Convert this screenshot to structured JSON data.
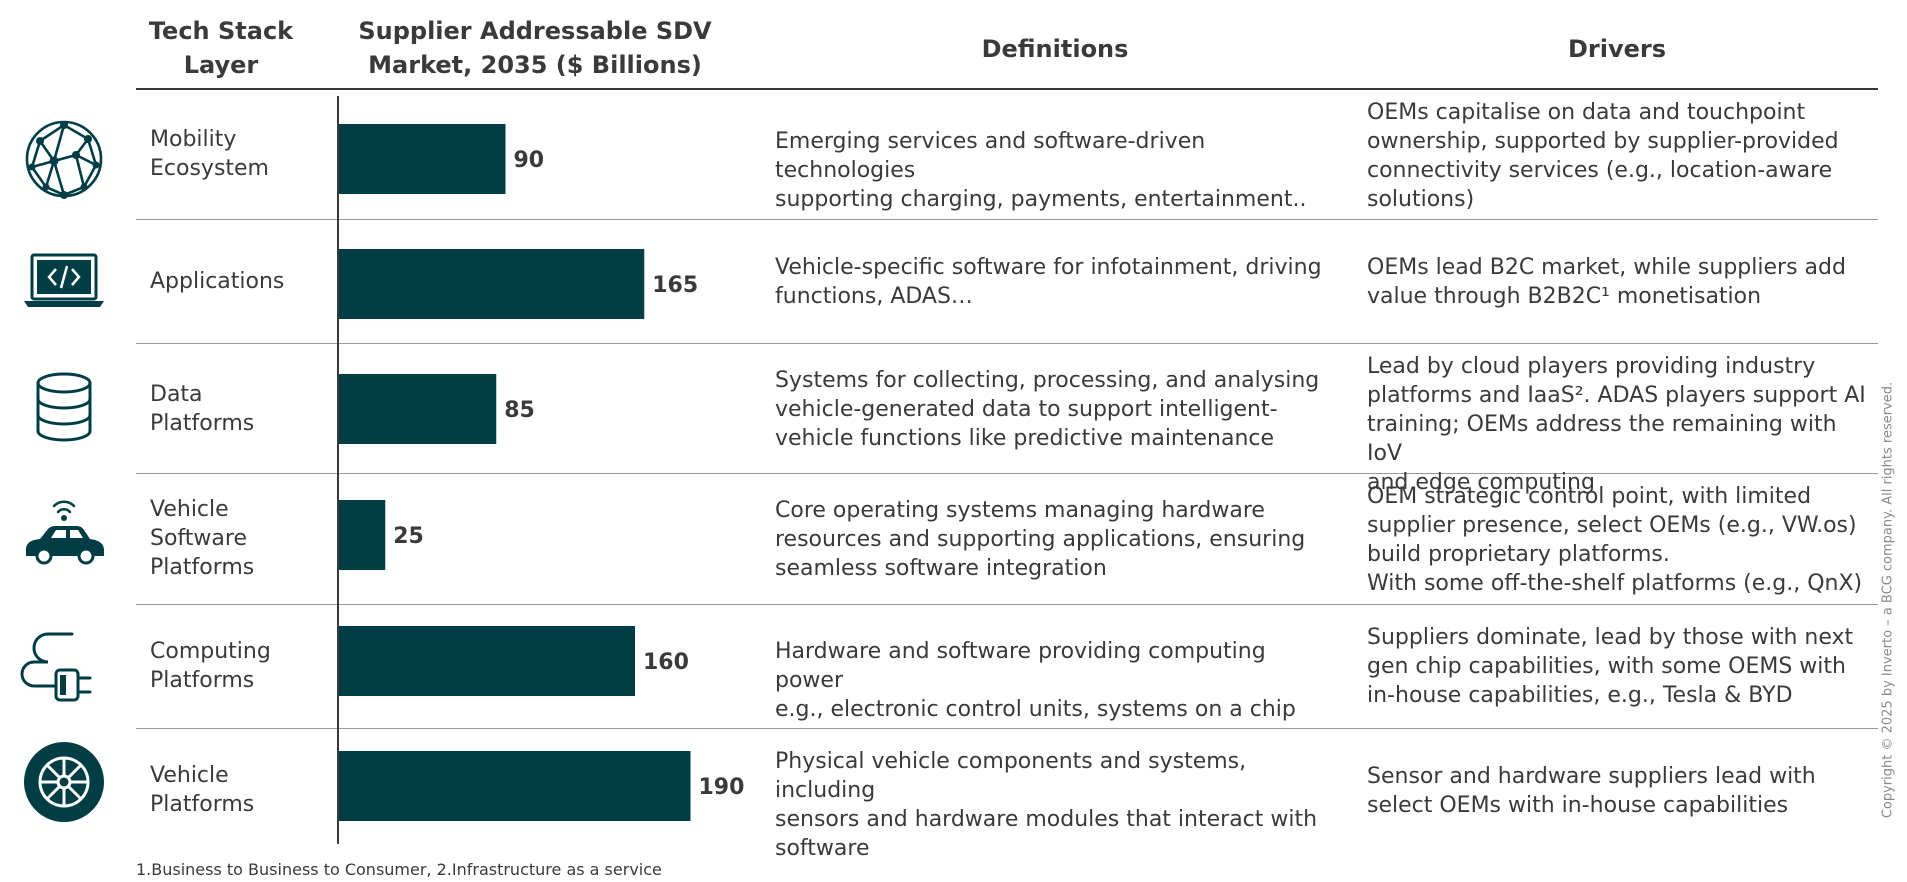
{
  "headers": {
    "layer": [
      "Tech Stack",
      "Layer"
    ],
    "market": [
      "Supplier Addressable SDV",
      "Market, 2035 ($ Billions)"
    ],
    "definitions": "Definitions",
    "drivers": "Drivers"
  },
  "rows": [
    {
      "icon": "network-globe-icon",
      "layer": [
        "Mobility",
        "Ecosystem"
      ],
      "definition": [
        "Emerging services and software-driven technologies",
        "supporting charging, payments, entertainment.."
      ],
      "drivers": [
        "OEMs capitalise on data and touchpoint",
        "ownership, supported by supplier-provided",
        "connectivity services (e.g., location-aware",
        "solutions)"
      ]
    },
    {
      "icon": "laptop-code-icon",
      "layer": [
        "Applications"
      ],
      "definition": [
        "Vehicle-specific software for infotainment, driving",
        "functions, ADAS…"
      ],
      "drivers": [
        "OEMs lead B2C market, while suppliers add",
        "value through B2B2C¹ monetisation"
      ]
    },
    {
      "icon": "database-icon",
      "layer": [
        "Data",
        "Platforms"
      ],
      "definition": [
        "Systems for collecting, processing, and analysing",
        "vehicle-generated data to support intelligent-",
        "vehicle functions like predictive maintenance"
      ],
      "drivers": [
        "Lead by cloud players providing industry",
        "platforms and IaaS². ADAS players support AI",
        "training; OEMs address the remaining with IoV",
        "and edge computing"
      ]
    },
    {
      "icon": "connected-car-icon",
      "layer": [
        "Vehicle",
        "Software",
        "Platforms"
      ],
      "definition": [
        "Core operating systems managing hardware",
        "resources and supporting applications, ensuring",
        "seamless software integration"
      ],
      "drivers": [
        "OEM strategic control point, with limited",
        "supplier presence, select OEMs (e.g., VW.os)",
        "build proprietary platforms.",
        "With some off-the-shelf platforms (e.g., QnX)"
      ]
    },
    {
      "icon": "chip-plug-icon",
      "layer": [
        "Computing",
        "Platforms"
      ],
      "definition": [
        "Hardware and software providing computing power",
        "e.g., electronic control units, systems on a chip"
      ],
      "drivers": [
        "Suppliers dominate, lead by those with next",
        "gen chip capabilities, with some OEMS with",
        "in-house capabilities, e.g., Tesla & BYD"
      ]
    },
    {
      "icon": "wheel-icon",
      "layer": [
        "Vehicle",
        "Platforms"
      ],
      "definition": [
        "Physical vehicle components and systems, including",
        "sensors and hardware modules that interact with",
        "software"
      ],
      "drivers": [
        "Sensor and hardware suppliers lead with",
        "select OEMs with in-house capabilities"
      ]
    }
  ],
  "chart_data": {
    "type": "bar",
    "orientation": "horizontal",
    "categories": [
      "Mobility Ecosystem",
      "Applications",
      "Data Platforms",
      "Vehicle Software Platforms",
      "Computing Platforms",
      "Vehicle Platforms"
    ],
    "values": [
      90,
      165,
      85,
      25,
      160,
      190
    ],
    "title": "Supplier Addressable SDV Market, 2035 ($ Billions)",
    "xlim": [
      0,
      200
    ],
    "bar_color": "#003d45",
    "grid": false
  },
  "colors": {
    "accent": "#003d45",
    "text": "#3a3a3a"
  },
  "footnote": "1.Business to Business to Consumer, 2.Infrastructure as a service",
  "copyright": "Copyright © 2025 by Inverto – a BCG company. All rights reserved."
}
